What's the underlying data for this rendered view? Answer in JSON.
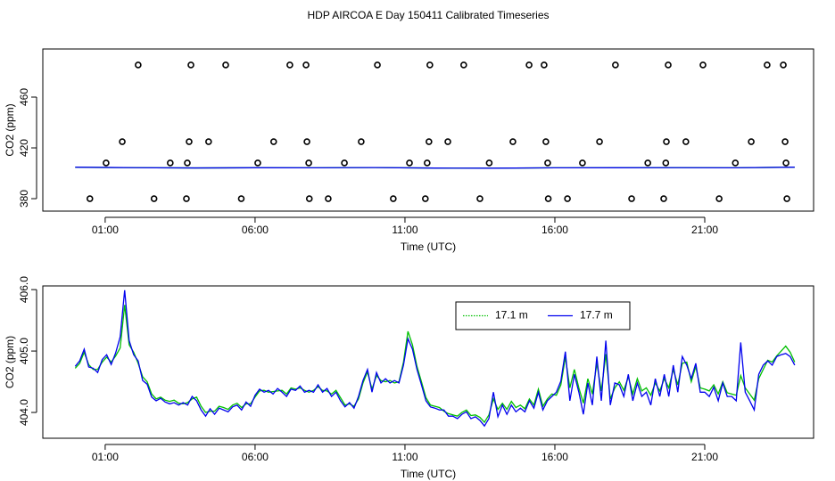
{
  "chart_data": [
    {
      "type": "line",
      "title": "HDP AIRCOA E  Day 150411  Calibrated Timeseries",
      "xlabel": "Time (UTC)",
      "ylabel": "CO2 (ppm)",
      "xlim": [
        -1.08,
        24.63
      ],
      "ylim": [
        370.2,
        497.9
      ],
      "xticks": [
        {
          "value": 1,
          "label": "01:00"
        },
        {
          "value": 6,
          "label": "06:00"
        },
        {
          "value": 11,
          "label": "11:00"
        },
        {
          "value": 16,
          "label": "16:00"
        },
        {
          "value": 21,
          "label": "21:00"
        }
      ],
      "yticks": [
        380,
        420,
        460
      ],
      "grid": false,
      "x": [
        0,
        2,
        4,
        6,
        8,
        10,
        12,
        14,
        16,
        18,
        20,
        22,
        24
      ],
      "series": [
        {
          "color": "#00c000",
          "values": [
            404.7,
            404.4,
            404.2,
            404.35,
            404.3,
            404.5,
            404.1,
            404.0,
            404.3,
            404.35,
            404.4,
            404.3,
            404.8
          ]
        },
        {
          "color": "#0000ee",
          "values": [
            404.8,
            404.4,
            404.2,
            404.35,
            404.3,
            404.5,
            404.1,
            404.0,
            404.3,
            404.35,
            404.4,
            404.3,
            404.8
          ]
        }
      ],
      "points": {
        "color": "#000000",
        "x": [
          2.1,
          3.86,
          5.02,
          7.16,
          7.7,
          10.08,
          11.83,
          12.96,
          15.14,
          15.64,
          18.02,
          19.78,
          20.94,
          23.08,
          23.62,
          1.57,
          3.8,
          4.45,
          6.62,
          7.73,
          9.54,
          11.8,
          12.43,
          14.6,
          15.7,
          17.49,
          19.72,
          20.37,
          22.55,
          23.68,
          1.03,
          3.74,
          3.17,
          6.09,
          7.79,
          8.98,
          11.15,
          11.74,
          13.81,
          15.76,
          16.92,
          19.1,
          19.7,
          22.02,
          23.71,
          0.49,
          2.63,
          3.71,
          5.54,
          7.81,
          8.44,
          10.61,
          11.68,
          13.5,
          15.78,
          16.42,
          18.56,
          19.63,
          21.48,
          23.74
        ],
        "values": [
          485.3,
          485.3,
          485.3,
          485.3,
          485.3,
          485.3,
          485.3,
          485.3,
          485.3,
          485.3,
          485.3,
          485.3,
          485.3,
          485.3,
          485.3,
          424.9,
          424.9,
          424.9,
          424.9,
          424.9,
          424.9,
          424.9,
          424.9,
          424.9,
          424.9,
          424.9,
          424.9,
          424.9,
          424.9,
          424.9,
          408.1,
          408.1,
          408.1,
          408.1,
          408.1,
          408.1,
          408.1,
          408.1,
          408.1,
          408.1,
          408.1,
          408.1,
          408.1,
          408.1,
          408.1,
          380,
          380,
          380,
          380,
          380,
          380,
          380,
          380,
          380,
          380,
          380,
          380,
          380,
          380,
          380
        ]
      }
    },
    {
      "type": "line",
      "xlabel": "Time (UTC)",
      "ylabel": "CO2 (ppm)",
      "xlim": [
        -1.08,
        24.63
      ],
      "ylim": [
        403.58,
        406.06
      ],
      "xticks": [
        {
          "value": 1,
          "label": "01:00"
        },
        {
          "value": 6,
          "label": "06:00"
        },
        {
          "value": 11,
          "label": "11:00"
        },
        {
          "value": 16,
          "label": "16:00"
        },
        {
          "value": 21,
          "label": "21:00"
        }
      ],
      "yticks": [
        {
          "value": 404,
          "label": "404.0"
        },
        {
          "value": 405,
          "label": "405.0"
        },
        {
          "value": 406,
          "label": "406.0"
        }
      ],
      "grid": false,
      "legend": "top-right",
      "x": [
        0,
        0.15,
        0.3,
        0.45,
        0.6,
        0.75,
        0.9,
        1.05,
        1.2,
        1.35,
        1.5,
        1.65,
        1.8,
        1.95,
        2.1,
        2.25,
        2.4,
        2.55,
        2.7,
        2.85,
        3,
        3.15,
        3.3,
        3.45,
        3.6,
        3.75,
        3.9,
        4.05,
        4.2,
        4.35,
        4.5,
        4.65,
        4.8,
        4.95,
        5.1,
        5.25,
        5.4,
        5.55,
        5.7,
        5.85,
        6,
        6.15,
        6.3,
        6.45,
        6.6,
        6.75,
        6.9,
        7.05,
        7.2,
        7.35,
        7.5,
        7.65,
        7.8,
        7.95,
        8.1,
        8.25,
        8.4,
        8.55,
        8.7,
        8.85,
        9,
        9.15,
        9.3,
        9.45,
        9.6,
        9.75,
        9.9,
        10.05,
        10.2,
        10.35,
        10.5,
        10.65,
        10.8,
        10.95,
        11.1,
        11.25,
        11.4,
        11.55,
        11.7,
        11.85,
        12,
        12.15,
        12.3,
        12.45,
        12.6,
        12.75,
        12.9,
        13.05,
        13.2,
        13.35,
        13.5,
        13.65,
        13.8,
        13.95,
        14.1,
        14.25,
        14.4,
        14.55,
        14.7,
        14.85,
        15,
        15.15,
        15.3,
        15.45,
        15.6,
        15.75,
        15.9,
        16.05,
        16.2,
        16.35,
        16.5,
        16.65,
        16.8,
        16.95,
        17.1,
        17.25,
        17.4,
        17.55,
        17.7,
        17.85,
        18,
        18.15,
        18.3,
        18.45,
        18.6,
        18.75,
        18.9,
        19.05,
        19.2,
        19.35,
        19.5,
        19.65,
        19.8,
        19.95,
        20.1,
        20.25,
        20.4,
        20.55,
        20.7,
        20.85,
        21,
        21.15,
        21.3,
        21.45,
        21.6,
        21.75,
        21.9,
        22.05,
        22.2,
        22.35,
        22.5,
        22.65,
        22.8,
        22.95,
        23.1,
        23.25,
        23.4,
        23.55,
        23.7,
        23.85,
        24
      ],
      "series": [
        {
          "name": "17.1 m",
          "color": "#00c000",
          "linestyle": "dotted",
          "values": [
            404.72,
            404.8,
            404.98,
            404.78,
            404.7,
            404.7,
            404.82,
            404.9,
            404.82,
            404.92,
            405.05,
            405.75,
            405.1,
            404.98,
            404.8,
            404.58,
            404.5,
            404.3,
            404.22,
            404.25,
            404.2,
            404.18,
            404.2,
            404.15,
            404.14,
            404.16,
            404.22,
            404.25,
            404.1,
            404.0,
            404.02,
            404.02,
            404.1,
            404.08,
            404.05,
            404.12,
            404.15,
            404.08,
            404.14,
            404.14,
            404.25,
            404.35,
            404.36,
            404.33,
            404.34,
            404.35,
            404.36,
            404.3,
            404.4,
            404.38,
            404.4,
            404.36,
            404.33,
            404.36,
            404.42,
            404.36,
            404.35,
            404.3,
            404.36,
            404.24,
            404.12,
            404.14,
            404.1,
            404.22,
            404.48,
            404.66,
            404.38,
            404.6,
            404.52,
            404.5,
            404.52,
            404.48,
            404.5,
            404.82,
            405.32,
            405.1,
            404.75,
            404.5,
            404.24,
            404.12,
            404.1,
            404.08,
            404.02,
            403.98,
            403.96,
            403.94,
            404.0,
            404.04,
            403.95,
            403.96,
            403.92,
            403.84,
            403.96,
            404.22,
            404.05,
            404.15,
            404.05,
            404.18,
            404.08,
            404.12,
            404.06,
            404.22,
            404.12,
            404.38,
            404.1,
            404.22,
            404.3,
            404.28,
            404.45,
            404.9,
            404.4,
            404.7,
            404.4,
            404.15,
            404.55,
            404.3,
            404.8,
            404.35,
            404.95,
            404.22,
            404.4,
            404.5,
            404.36,
            404.58,
            404.3,
            404.55,
            404.35,
            404.4,
            404.28,
            404.48,
            404.35,
            404.55,
            404.4,
            404.7,
            404.45,
            404.8,
            404.82,
            404.5,
            404.75,
            404.4,
            404.38,
            404.35,
            404.45,
            404.3,
            404.5,
            404.32,
            404.3,
            404.28,
            404.6,
            404.4,
            404.3,
            404.2,
            404.55,
            404.7,
            404.85,
            404.82,
            404.92,
            405.0,
            405.08,
            404.98,
            404.82
          ]
        },
        {
          "name": "17.7 m",
          "color": "#0000ee",
          "values": [
            404.75,
            404.84,
            405.03,
            404.74,
            404.72,
            404.65,
            404.86,
            404.94,
            404.78,
            404.97,
            405.23,
            405.99,
            405.17,
            404.94,
            404.84,
            404.52,
            404.46,
            404.25,
            404.19,
            404.23,
            404.17,
            404.14,
            404.16,
            404.12,
            404.16,
            404.12,
            404.26,
            404.19,
            404.04,
            403.94,
            404.06,
            403.97,
            404.07,
            404.04,
            404.01,
            404.09,
            404.12,
            404.04,
            404.17,
            404.1,
            404.28,
            404.38,
            404.33,
            404.36,
            404.3,
            404.39,
            404.33,
            404.26,
            404.38,
            404.36,
            404.43,
            404.33,
            404.36,
            404.33,
            404.45,
            404.33,
            404.39,
            404.26,
            404.33,
            404.19,
            404.09,
            404.16,
            404.07,
            404.26,
            404.52,
            404.7,
            404.33,
            404.65,
            404.48,
            404.55,
            404.48,
            404.52,
            404.48,
            404.77,
            405.2,
            405.03,
            404.7,
            404.45,
            404.19,
            404.09,
            404.07,
            404.04,
            404.04,
            403.94,
            403.94,
            403.9,
            403.97,
            404.01,
            403.9,
            403.93,
            403.87,
            403.78,
            403.9,
            404.33,
            403.93,
            404.12,
            403.97,
            404.12,
            404.01,
            404.07,
            404.01,
            404.19,
            404.07,
            404.33,
            404.04,
            404.19,
            404.26,
            404.33,
            404.51,
            404.99,
            404.19,
            404.62,
            404.33,
            403.97,
            404.48,
            404.12,
            404.91,
            404.19,
            405.17,
            404.12,
            404.48,
            404.45,
            404.26,
            404.62,
            404.19,
            404.48,
            404.26,
            404.33,
            404.12,
            404.55,
            404.26,
            404.62,
            404.26,
            404.77,
            404.33,
            404.91,
            404.77,
            404.55,
            404.8,
            404.33,
            404.33,
            404.26,
            404.41,
            404.19,
            404.48,
            404.26,
            404.26,
            404.19,
            405.14,
            404.33,
            404.19,
            404.04,
            404.62,
            404.77,
            404.84,
            404.77,
            404.91,
            404.94,
            404.96,
            404.91,
            404.77
          ]
        }
      ]
    }
  ]
}
